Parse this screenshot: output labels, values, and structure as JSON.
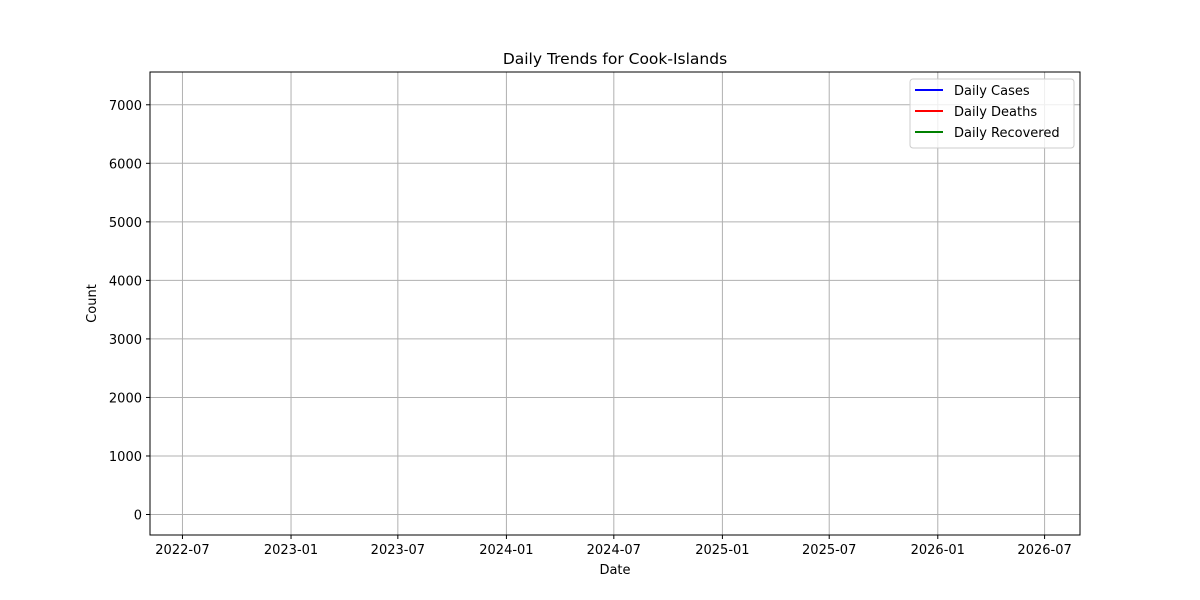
{
  "chart_data": {
    "type": "line",
    "title": "Daily Trends for Cook-Islands",
    "xlabel": "Date",
    "ylabel": "Count",
    "x_ticks": [
      "2022-07",
      "2023-01",
      "2023-07",
      "2024-01",
      "2024-07",
      "2025-01",
      "2025-07",
      "2026-01",
      "2026-07"
    ],
    "y_ticks": [
      "0",
      "1000",
      "2000",
      "3000",
      "4000",
      "5000",
      "6000",
      "7000"
    ],
    "xlim": [
      "2022-05-07",
      "2026-08-30"
    ],
    "ylim": [
      -350,
      7560
    ],
    "grid": true,
    "legend_position": "top-right",
    "series": [
      {
        "name": "Daily Cases",
        "color": "#0000ff",
        "points": []
      },
      {
        "name": "Daily Deaths",
        "color": "#ff0000",
        "points": []
      },
      {
        "name": "Daily Recovered",
        "color": "#008000",
        "points": []
      }
    ],
    "grid_color": "#b0b0b0"
  }
}
